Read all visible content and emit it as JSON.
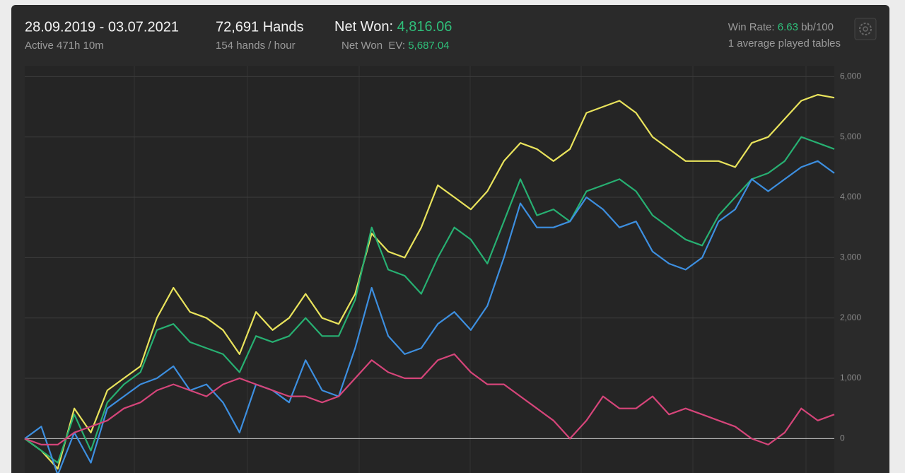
{
  "header": {
    "date_range": "28.09.2019 - 03.07.2021",
    "active": "Active 471h 10m",
    "hands": "72,691 Hands",
    "hands_per_hour": "154 hands / hour",
    "net_won_label": "Net Won:",
    "net_won": "4,816.06",
    "net_won_ev_label": "Net Won  EV:",
    "net_won_ev": "5,687.04",
    "win_rate_label": "Win Rate:",
    "win_rate": "6.63",
    "win_rate_unit": "bb/100",
    "tables": "1 average played tables"
  },
  "chart_data": {
    "type": "line",
    "ylim": [
      -570,
      6180
    ],
    "yticks": [
      {
        "value": 0,
        "label": "0"
      },
      {
        "value": 1000,
        "label": "1,000"
      },
      {
        "value": 2000,
        "label": "2,000"
      },
      {
        "value": 3000,
        "label": "3,000"
      },
      {
        "value": 4000,
        "label": "4,000"
      },
      {
        "value": 5000,
        "label": "5,000"
      },
      {
        "value": 6000,
        "label": "6,000"
      }
    ],
    "grid": true,
    "series": [
      {
        "color": "#e9e35c",
        "values": [
          0,
          -200,
          -500,
          500,
          100,
          800,
          1000,
          1200,
          2000,
          2500,
          2100,
          2000,
          1800,
          1400,
          2100,
          1800,
          2000,
          2400,
          2000,
          1900,
          2400,
          3400,
          3100,
          3000,
          3500,
          4200,
          4000,
          3800,
          4100,
          4600,
          4900,
          4800,
          4600,
          4800,
          5400,
          5500,
          5600,
          5400,
          5000,
          4800,
          4600,
          4600,
          4600,
          4500,
          4900,
          5000,
          5300,
          5600,
          5700,
          5650
        ]
      },
      {
        "color": "#27b072",
        "values": [
          0,
          -200,
          -400,
          400,
          -200,
          600,
          900,
          1100,
          1800,
          1900,
          1600,
          1500,
          1400,
          1100,
          1700,
          1600,
          1700,
          2000,
          1700,
          1700,
          2300,
          3500,
          2800,
          2700,
          2400,
          3000,
          3500,
          3300,
          2900,
          3600,
          4300,
          3700,
          3800,
          3600,
          4100,
          4200,
          4300,
          4100,
          3700,
          3500,
          3300,
          3200,
          3700,
          4000,
          4300,
          4400,
          4600,
          5000,
          4900,
          4800
        ]
      },
      {
        "color": "#3d8fe0",
        "values": [
          0,
          200,
          -600,
          100,
          -400,
          500,
          700,
          900,
          1000,
          1200,
          800,
          900,
          600,
          100,
          900,
          800,
          600,
          1300,
          800,
          700,
          1500,
          2500,
          1700,
          1400,
          1500,
          1900,
          2100,
          1800,
          2200,
          3000,
          3900,
          3500,
          3500,
          3600,
          4000,
          3800,
          3500,
          3600,
          3100,
          2900,
          2800,
          3000,
          3600,
          3800,
          4300,
          4100,
          4300,
          4500,
          4600,
          4400
        ]
      },
      {
        "color": "#d6457a",
        "values": [
          0,
          -100,
          -100,
          100,
          200,
          300,
          500,
          600,
          800,
          900,
          800,
          700,
          900,
          1000,
          900,
          800,
          700,
          700,
          600,
          700,
          1000,
          1300,
          1100,
          1000,
          1000,
          1300,
          1400,
          1100,
          900,
          900,
          700,
          500,
          300,
          0,
          300,
          700,
          500,
          500,
          700,
          400,
          500,
          400,
          300,
          200,
          0,
          -100,
          100,
          500,
          300,
          400
        ]
      }
    ]
  }
}
